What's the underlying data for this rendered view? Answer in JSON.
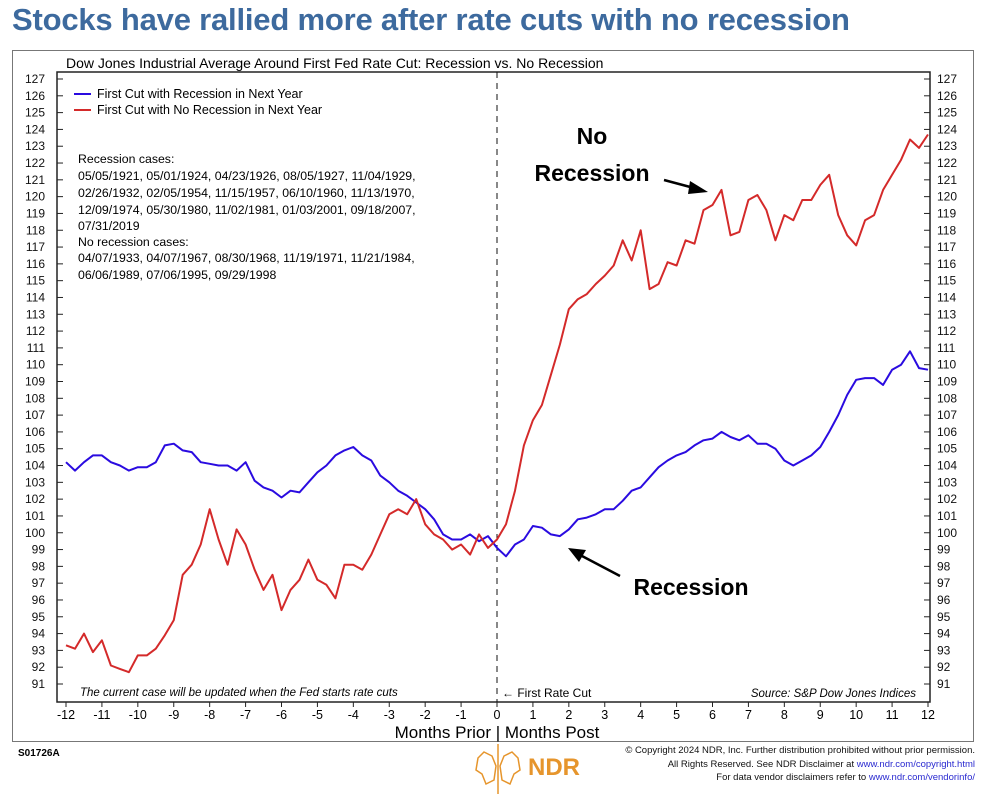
{
  "headline": "Stocks have rallied more after rate cuts with no recession",
  "chart_data": {
    "type": "line",
    "title": "Dow Jones Industrial Average Around First Fed Rate Cut: Recession vs. No Recession",
    "xlabel": "Months Prior | Months Post",
    "ylabel": "",
    "xlim": [
      -12,
      12
    ],
    "ylim": [
      91,
      127
    ],
    "x_start": -12,
    "x_step": 0.25,
    "x_ticks": [
      -12,
      -11,
      -10,
      -9,
      -8,
      -7,
      -6,
      -5,
      -4,
      -3,
      -2,
      -1,
      0,
      1,
      2,
      3,
      4,
      5,
      6,
      7,
      8,
      9,
      10,
      11,
      12
    ],
    "y_ticks": [
      91,
      92,
      93,
      94,
      95,
      96,
      97,
      98,
      99,
      100,
      101,
      102,
      103,
      104,
      105,
      106,
      107,
      108,
      109,
      110,
      111,
      112,
      113,
      114,
      115,
      116,
      117,
      118,
      119,
      120,
      121,
      122,
      123,
      124,
      125,
      126,
      127
    ],
    "grid": false,
    "legend_placement": "top-left",
    "series": [
      {
        "name": "First Cut with Recession in Next Year",
        "color": "#2a0be0",
        "values": [
          104.2,
          103.7,
          104.2,
          104.6,
          104.6,
          104.2,
          104.0,
          103.7,
          103.9,
          103.9,
          104.2,
          105.2,
          105.3,
          104.9,
          104.8,
          104.2,
          104.1,
          104.0,
          104.0,
          103.7,
          104.2,
          103.1,
          102.7,
          102.5,
          102.1,
          102.5,
          102.4,
          103.0,
          103.6,
          104.0,
          104.6,
          104.9,
          105.1,
          104.6,
          104.3,
          103.4,
          103.0,
          102.5,
          102.2,
          101.8,
          101.4,
          100.8,
          99.9,
          99.6,
          99.6,
          99.9,
          99.5,
          99.8,
          99.1,
          98.6,
          99.3,
          99.6,
          100.4,
          100.3,
          99.9,
          99.8,
          100.2,
          100.8,
          100.9,
          101.1,
          101.4,
          101.4,
          101.9,
          102.5,
          102.7,
          103.3,
          103.9,
          104.3,
          104.6,
          104.8,
          105.2,
          105.5,
          105.6,
          106.0,
          105.7,
          105.5,
          105.8,
          105.3,
          105.3,
          105.0,
          104.3,
          104.0,
          104.3,
          104.6,
          105.1,
          106.0,
          107.0,
          108.2,
          109.1,
          109.2,
          109.2,
          108.8,
          109.7,
          110.0,
          110.8,
          109.8,
          109.7
        ]
      },
      {
        "name": "First Cut with No Recession in Next Year",
        "color": "#d42a2a",
        "values": [
          93.3,
          93.1,
          94.0,
          92.9,
          93.6,
          92.1,
          91.9,
          91.7,
          92.7,
          92.7,
          93.1,
          93.9,
          94.8,
          97.5,
          98.1,
          99.3,
          101.4,
          99.6,
          98.1,
          100.2,
          99.3,
          97.8,
          96.6,
          97.5,
          95.4,
          96.6,
          97.2,
          98.4,
          97.2,
          96.9,
          96.1,
          98.1,
          98.1,
          97.8,
          98.7,
          99.9,
          101.1,
          101.4,
          101.1,
          102.0,
          100.5,
          99.9,
          99.6,
          99.0,
          99.3,
          98.7,
          99.9,
          99.1,
          99.6,
          100.5,
          102.5,
          105.2,
          106.7,
          107.6,
          109.4,
          111.2,
          113.3,
          113.9,
          114.2,
          114.8,
          115.3,
          115.9,
          117.4,
          116.2,
          118.0,
          114.5,
          114.8,
          116.1,
          115.9,
          117.4,
          117.2,
          119.2,
          119.5,
          120.4,
          117.7,
          117.9,
          119.8,
          120.1,
          119.2,
          117.4,
          118.9,
          118.6,
          119.8,
          119.8,
          120.7,
          121.3,
          118.9,
          117.7,
          117.1,
          118.6,
          118.9,
          120.4,
          121.3,
          122.2,
          123.4,
          122.9,
          123.7
        ]
      }
    ],
    "notes": {
      "recession_header": "Recession cases:",
      "recession_lines": [
        "05/05/1921, 05/01/1924, 04/23/1926, 08/05/1927, 11/04/1929,",
        "02/26/1932, 02/05/1954, 11/15/1957, 06/10/1960, 11/13/1970,",
        "12/09/1974, 05/30/1980, 11/02/1981, 01/03/2001, 09/18/2007,",
        "07/31/2019"
      ],
      "no_recession_header": "No recession cases:",
      "no_recession_lines": [
        "04/07/1933, 04/07/1967, 08/30/1968, 11/19/1971, 11/21/1984,",
        "06/06/1989, 07/06/1995, 09/29/1998"
      ]
    },
    "annotations": {
      "no_recession_line1": "No",
      "no_recession_line2": "Recession",
      "recession": "Recession",
      "first_cut": "← First Rate Cut",
      "current_case": "The current case will be updated when the Fed starts rate cuts",
      "source": "Source: S&P Dow Jones Indices"
    }
  },
  "footer": {
    "code": "S01726A",
    "logo_text": "NDR",
    "copyright_line1": "© Copyright 2024 NDR, Inc. Further distribution prohibited without prior permission.",
    "copyright_line2": "All Rights Reserved. See NDR Disclaimer at",
    "copyright_link": "www.ndr.com/copyright.html",
    "vendor_line": "For data vendor disclaimers refer to",
    "vendor_link": "www.ndr.com/vendorinfo/"
  }
}
